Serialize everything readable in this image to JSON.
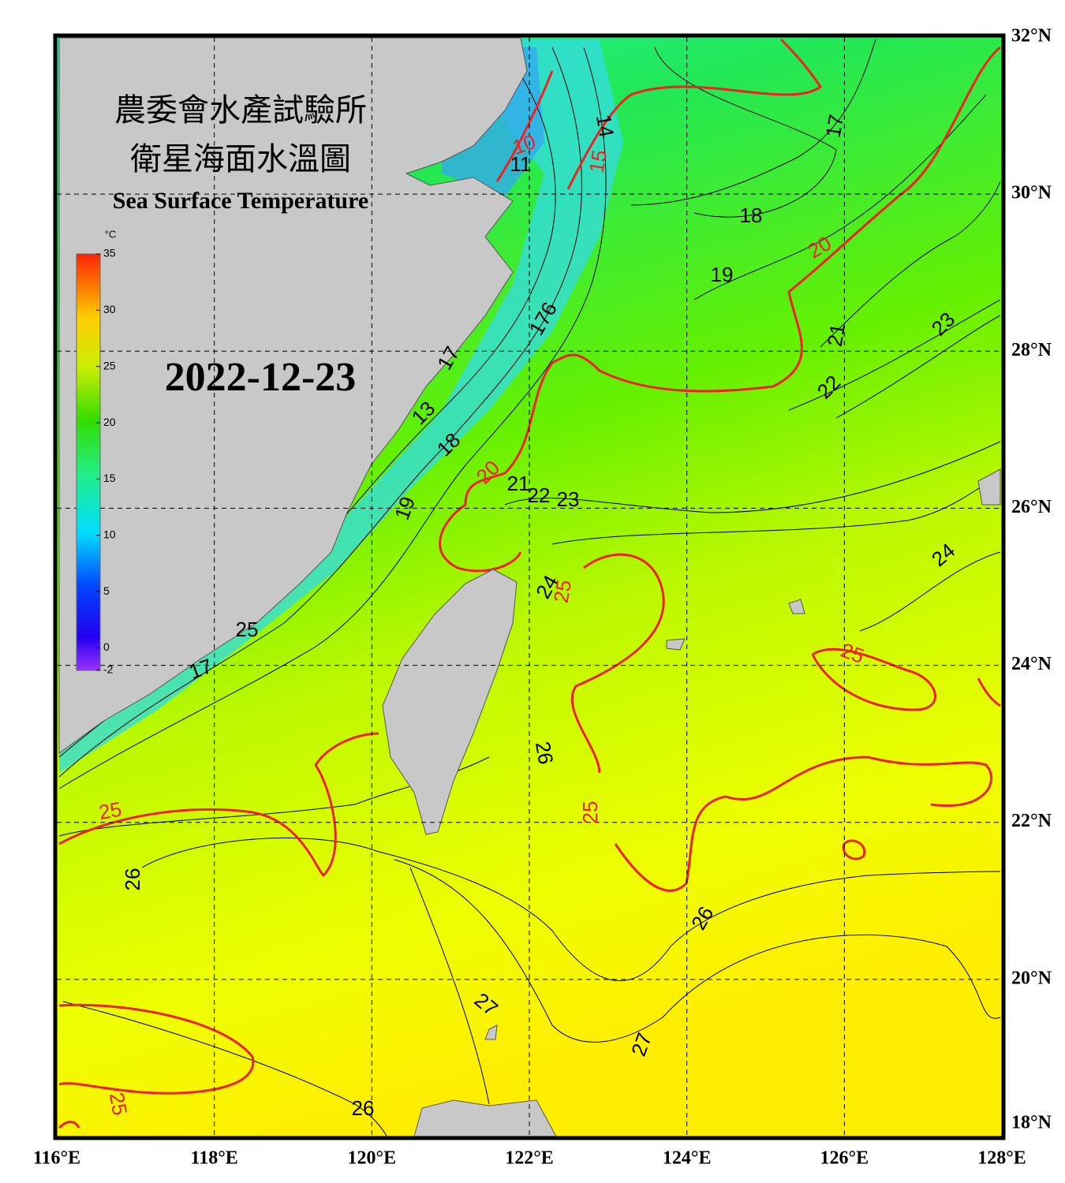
{
  "title_zh": "農委會水產試驗所",
  "subtitle_zh": "衛星海面水溫圖",
  "title_en": "Sea Surface Temperature",
  "date": "2022-12-23",
  "colorbar": {
    "unit": "°C",
    "range": [
      -2,
      35
    ],
    "ticks": [
      35,
      30,
      25,
      20,
      15,
      10,
      5,
      0,
      -2
    ]
  },
  "map": {
    "lonlim": [
      116,
      128
    ],
    "latlim": [
      18,
      32
    ],
    "lon_ticks": [
      {
        "value": 116,
        "label": "116°E"
      },
      {
        "value": 118,
        "label": "118°E"
      },
      {
        "value": 120,
        "label": "120°E"
      },
      {
        "value": 122,
        "label": "122°E"
      },
      {
        "value": 124,
        "label": "124°E"
      },
      {
        "value": 126,
        "label": "126°E"
      },
      {
        "value": 128,
        "label": "128°E"
      }
    ],
    "lat_ticks": [
      {
        "value": 32,
        "label": "32°N"
      },
      {
        "value": 30,
        "label": "30°N"
      },
      {
        "value": 28,
        "label": "28°N"
      },
      {
        "value": 26,
        "label": "26°N"
      },
      {
        "value": 24,
        "label": "24°N"
      },
      {
        "value": 22,
        "label": "22°N"
      },
      {
        "value": 20,
        "label": "20°N"
      },
      {
        "value": 18,
        "label": "18°N"
      }
    ],
    "grid": true
  },
  "contour_labels_black": [
    "14",
    "17",
    "11",
    "18",
    "19",
    "21",
    "23",
    "22",
    "176",
    "17",
    "13",
    "18",
    "21",
    "22",
    "23",
    "19",
    "24",
    "24",
    "26",
    "26",
    "26",
    "27",
    "27",
    "26",
    "25",
    "17"
  ],
  "contour_labels_red": [
    "10",
    "15",
    "20",
    "20",
    "25",
    "25",
    "25",
    "25",
    "25"
  ]
}
